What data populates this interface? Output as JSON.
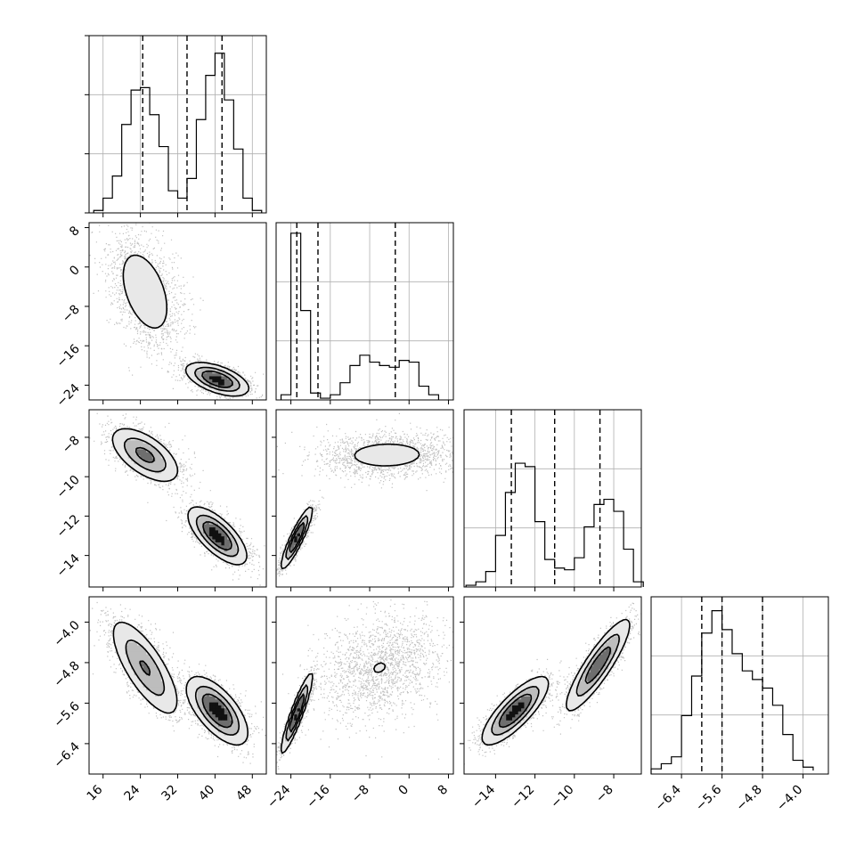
{
  "chart_data": {
    "type": "corner",
    "grid": true,
    "parameters": [
      {
        "index": 0,
        "range": [
          13,
          51
        ],
        "ticks": [
          16,
          24,
          32,
          40,
          48
        ],
        "tick_labels": [
          "16",
          "24",
          "32",
          "40",
          "48"
        ],
        "quantiles": [
          24.5,
          34.0,
          41.5
        ]
      },
      {
        "index": 1,
        "range": [
          -27,
          9
        ],
        "ticks": [
          -24,
          -16,
          -8,
          0,
          8
        ],
        "tick_labels": [
          "−24",
          "−16",
          "−8",
          "0",
          "8"
        ],
        "quantiles": [
          -22.8,
          -18.5,
          -2.8
        ]
      },
      {
        "index": 2,
        "range": [
          -15.6,
          -6.6
        ],
        "ticks": [
          -14,
          -12,
          -10,
          -8
        ],
        "tick_labels": [
          "−14",
          "−12",
          "−10",
          "−8"
        ],
        "quantiles": [
          -13.2,
          -11.0,
          -8.7
        ]
      },
      {
        "index": 3,
        "range": [
          -7.0,
          -3.5
        ],
        "ticks": [
          -6.4,
          -5.6,
          -4.8,
          -4.0
        ],
        "tick_labels": [
          "−6.4",
          "−5.6",
          "−4.8",
          "−4.0"
        ],
        "quantiles": [
          -6.0,
          -5.6,
          -4.8
        ]
      }
    ],
    "histograms": [
      {
        "param": 0,
        "y_max": 70,
        "edges": [
          14,
          16,
          18,
          20,
          22,
          24,
          26,
          28,
          30,
          32,
          34,
          36,
          38,
          40,
          42,
          44,
          46,
          48,
          50
        ],
        "counts": [
          1,
          6,
          15,
          36,
          50,
          51,
          40,
          27,
          9,
          6,
          14,
          38,
          56,
          65,
          46,
          26,
          6,
          1
        ]
      },
      {
        "param": 1,
        "y_max": 100,
        "edges": [
          -26,
          -24,
          -22,
          -20,
          -18,
          -16,
          -14,
          -12,
          -10,
          -8,
          -6,
          -4,
          -2,
          0,
          2,
          4,
          6
        ],
        "counts": [
          3,
          97,
          52,
          4,
          1,
          3,
          10,
          20,
          26,
          22,
          20,
          19,
          23,
          22,
          8,
          3
        ],
        "y_grid_max": 130
      },
      {
        "param": 2,
        "y_max": 100,
        "edges": [
          -15.5,
          -15,
          -14.5,
          -14,
          -13.5,
          -13,
          -12.5,
          -12,
          -11.5,
          -11,
          -10.5,
          -10,
          -9.5,
          -9,
          -8.5,
          -8,
          -7.5,
          -7,
          -6.5
        ],
        "counts": [
          1,
          3,
          9,
          30,
          55,
          72,
          70,
          38,
          16,
          11,
          10,
          17,
          35,
          48,
          51,
          44,
          22,
          3
        ],
        "y_grid_max": 130
      },
      {
        "param": 3,
        "y_max": 100,
        "edges": [
          -7.0,
          -6.8,
          -6.6,
          -6.4,
          -6.2,
          -6.0,
          -5.8,
          -5.6,
          -5.4,
          -5.2,
          -5.0,
          -4.8,
          -4.6,
          -4.4,
          -4.2,
          -4.0,
          -3.8
        ],
        "counts": [
          3,
          6,
          10,
          34,
          57,
          82,
          95,
          84,
          70,
          60,
          55,
          50,
          40,
          23,
          8,
          4,
          2
        ],
        "y_grid_max": 110
      }
    ],
    "joint_2d": [
      {
        "x": 0,
        "y": 1,
        "blobs": [
          {
            "cx": 25,
            "cy": -5,
            "sx": 3.4,
            "sy": 5.4,
            "rho": -0.45,
            "w": 0.47
          },
          {
            "cx": 40.5,
            "cy": -22.8,
            "sx": 3.0,
            "sy": 1.5,
            "rho": -0.55,
            "w": 0.53
          }
        ]
      },
      {
        "x": 0,
        "y": 2,
        "blobs": [
          {
            "cx": 25,
            "cy": -8.9,
            "sx": 3.4,
            "sy": 0.65,
            "rho": -0.6,
            "w": 0.47
          },
          {
            "cx": 40.5,
            "cy": -13.0,
            "sx": 2.8,
            "sy": 0.65,
            "rho": -0.7,
            "w": 0.53
          }
        ]
      },
      {
        "x": 0,
        "y": 3,
        "blobs": [
          {
            "cx": 25,
            "cy": -4.9,
            "sx": 3.4,
            "sy": 0.45,
            "rho": -0.75,
            "w": 0.47
          },
          {
            "cx": 40.5,
            "cy": -5.75,
            "sx": 2.9,
            "sy": 0.3,
            "rho": -0.65,
            "w": 0.53
          }
        ]
      },
      {
        "x": 1,
        "y": 2,
        "blobs": [
          {
            "cx": -22.8,
            "cy": -13.1,
            "sx": 1.4,
            "sy": 0.7,
            "rho": 0.9,
            "w": 0.5
          },
          {
            "cx": -4.5,
            "cy": -8.9,
            "sx": 6.0,
            "sy": 0.5,
            "rho": 0.05,
            "w": 0.5
          }
        ]
      },
      {
        "x": 1,
        "y": 3,
        "blobs": [
          {
            "cx": -22.8,
            "cy": -5.8,
            "sx": 1.4,
            "sy": 0.35,
            "rho": 0.92,
            "w": 0.5
          },
          {
            "cx": -6.0,
            "cy": -4.9,
            "sx": 5.6,
            "sy": 0.45,
            "rho": 0.3,
            "w": 0.5
          }
        ]
      },
      {
        "x": 2,
        "y": 3,
        "blobs": [
          {
            "cx": -13.0,
            "cy": -5.75,
            "sx": 0.75,
            "sy": 0.3,
            "rho": 0.8,
            "w": 0.53
          },
          {
            "cx": -8.8,
            "cy": -4.85,
            "sx": 0.75,
            "sy": 0.42,
            "rho": 0.88,
            "w": 0.47
          }
        ]
      }
    ]
  }
}
